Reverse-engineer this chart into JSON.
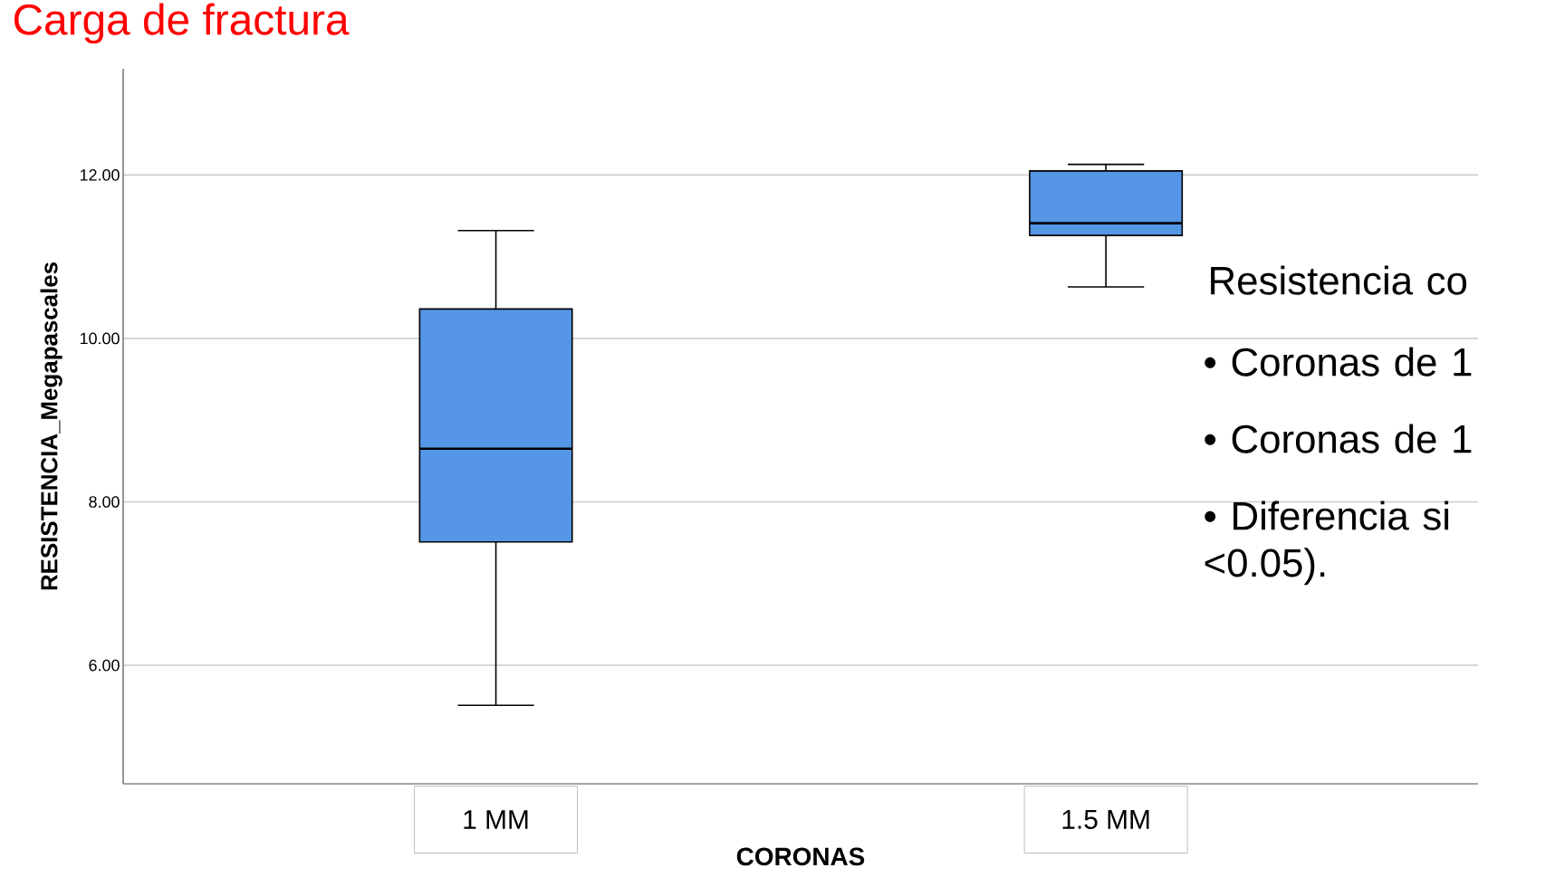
{
  "chart_data": {
    "type": "box",
    "title": "Carga de fractura",
    "xlabel": "CORONAS",
    "ylabel": "RESISTENCIA_Megapascales",
    "categories": [
      "1 MM",
      "1.5 MM"
    ],
    "color": "#5596e6",
    "boxes": [
      {
        "low": 5.51,
        "q1": 7.51,
        "median": 8.65,
        "q3": 10.36,
        "high": 11.32
      },
      {
        "low": 10.63,
        "q1": 11.26,
        "median": 11.41,
        "q3": 12.05,
        "high": 12.13
      }
    ],
    "ylim": [
      4.55,
      13.3
    ],
    "yticks": [
      {
        "value": 6,
        "label": "6.00"
      },
      {
        "value": 8,
        "label": "8.00"
      },
      {
        "value": 10,
        "label": "10.00"
      },
      {
        "value": 12,
        "label": "12.00"
      }
    ],
    "grid": "y",
    "annotations": [
      "Resistencia co",
      "• Coronas de 1",
      "• Coronas de 1",
      "• Diferencia si <0.05)."
    ]
  }
}
